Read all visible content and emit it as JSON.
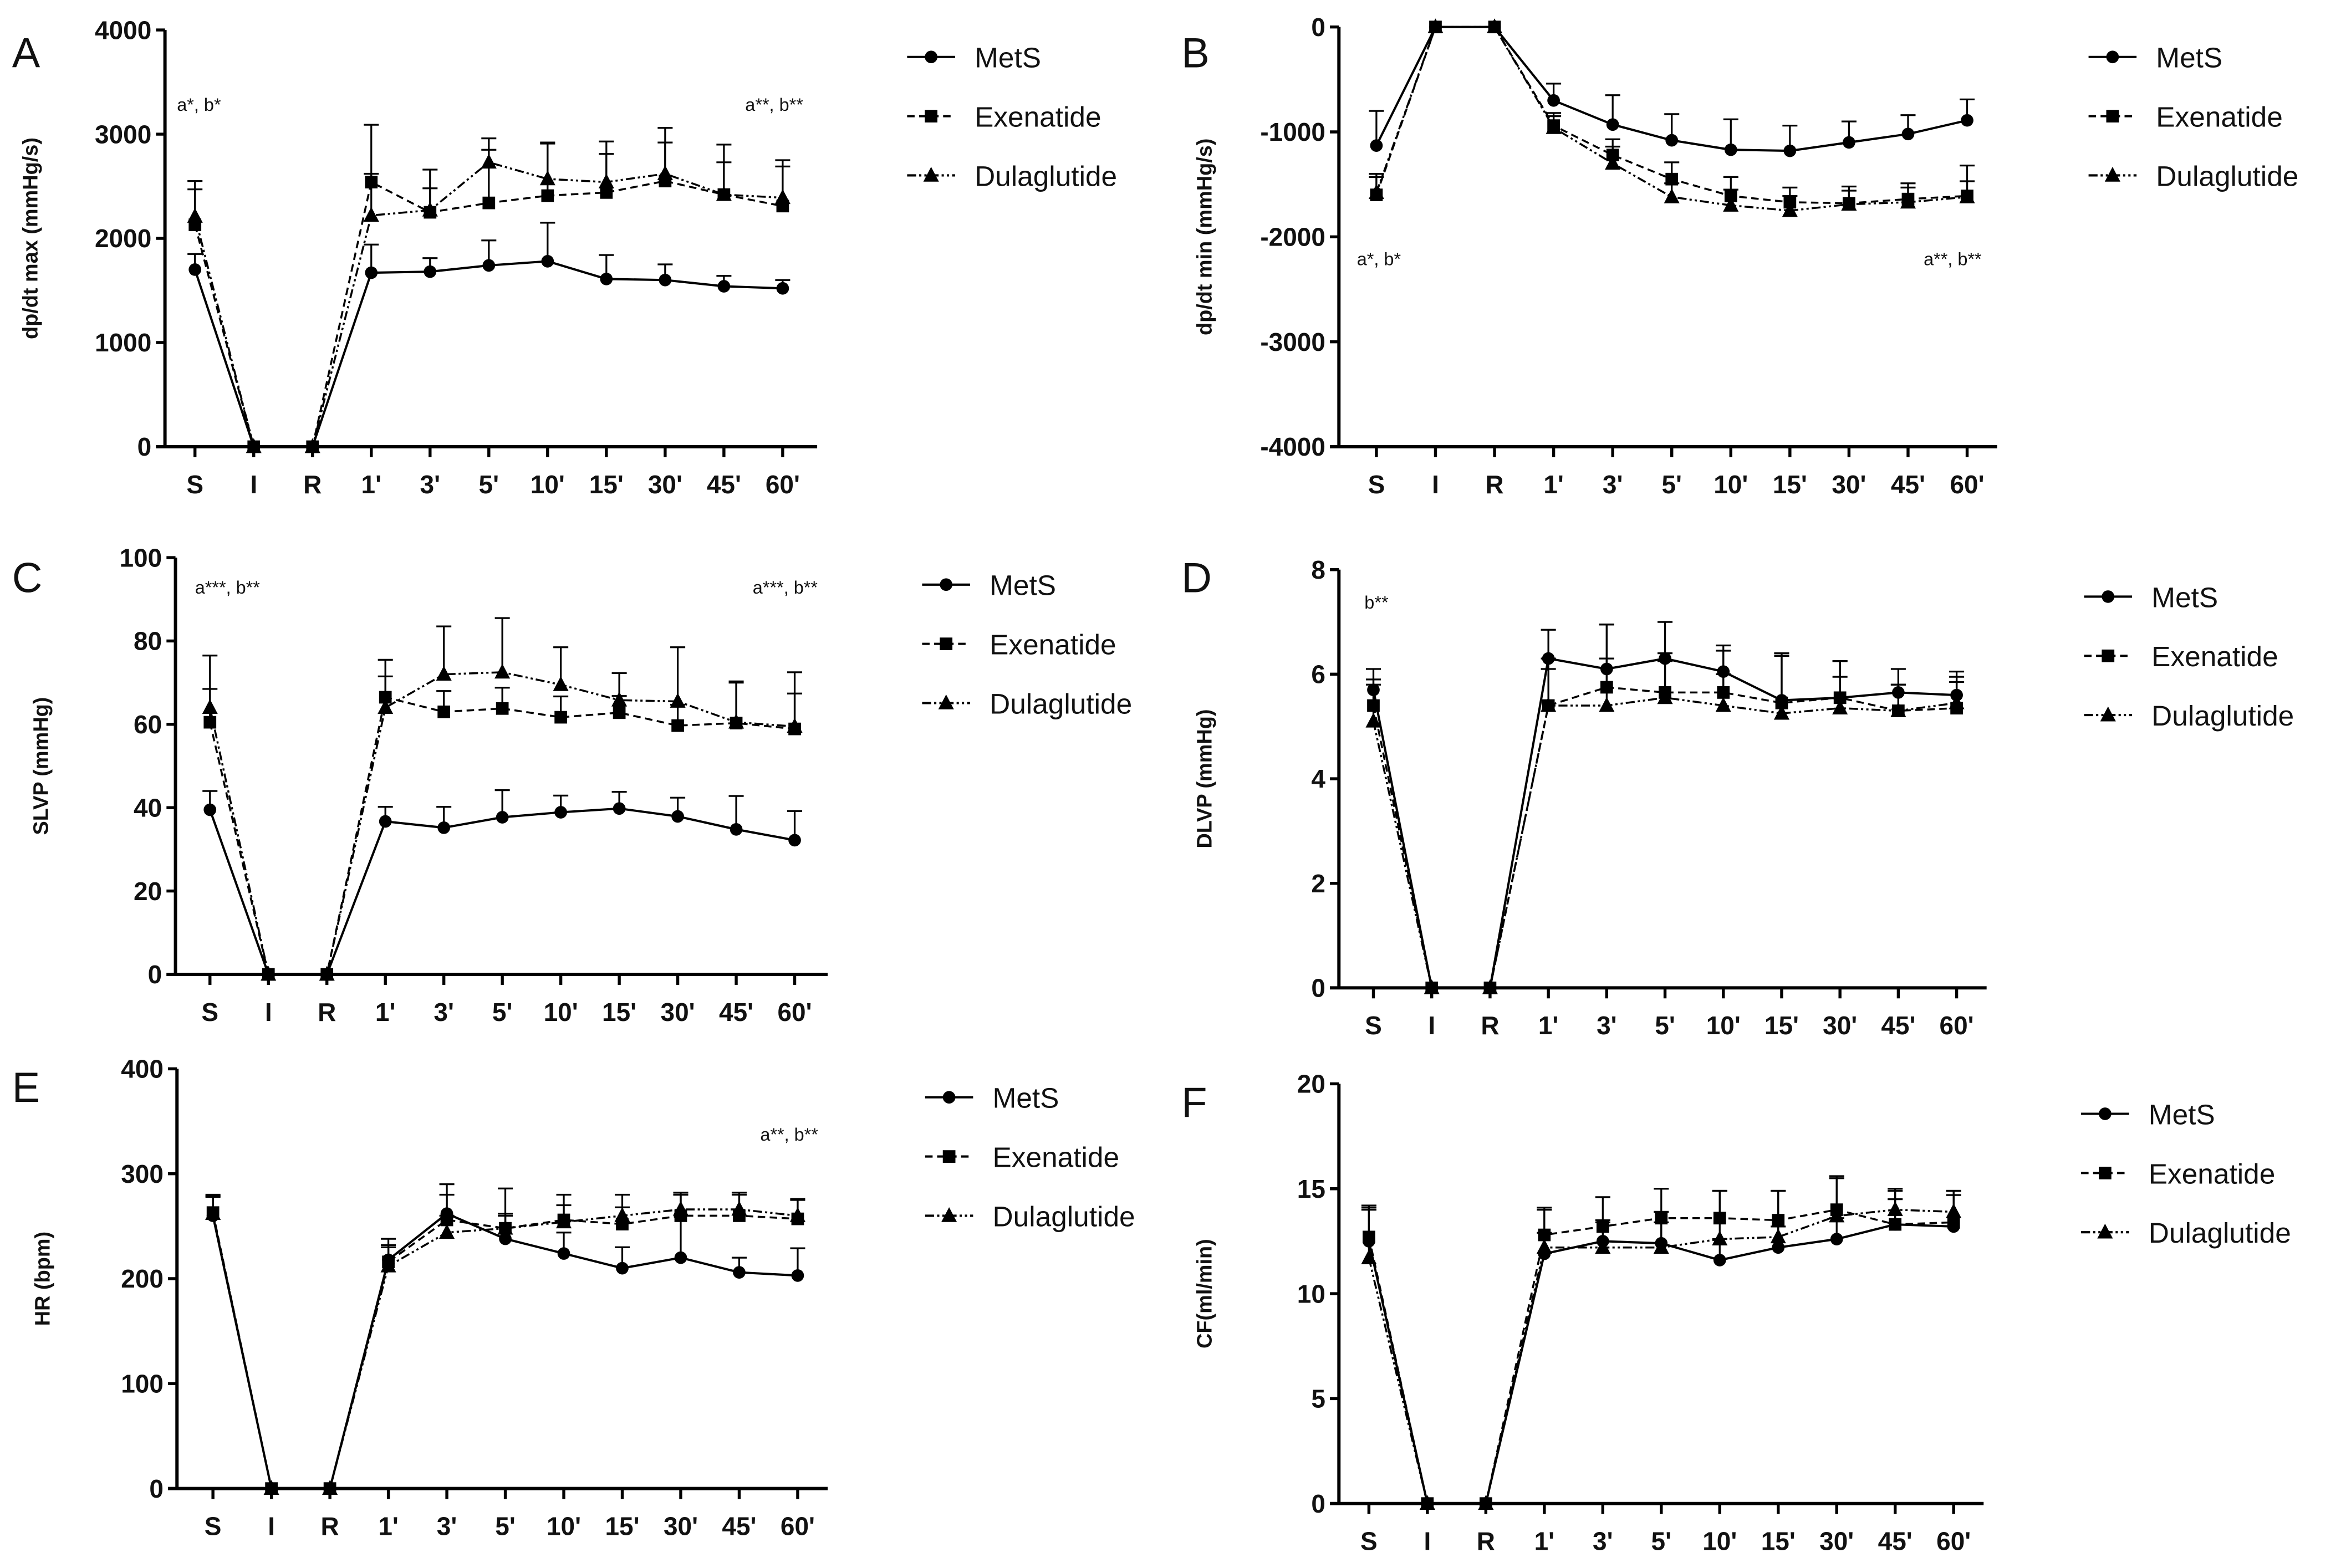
{
  "chart_data": [
    {
      "type": "line",
      "panel_label": "A",
      "ylabel": "dp/dt max (mmHg/s)",
      "ylim": [
        0,
        4000
      ],
      "yticks": [
        0,
        1000,
        2000,
        3000,
        4000
      ],
      "categories": [
        "S",
        "I",
        "R",
        "1'",
        "3'",
        "5'",
        "10'",
        "15'",
        "30'",
        "45'",
        "60'"
      ],
      "annotations": [
        "a*, b*",
        "a**, b**"
      ],
      "series": [
        {
          "name": "MetS",
          "values": [
            1700,
            0,
            0,
            1670,
            1680,
            1740,
            1780,
            1610,
            1600,
            1540,
            1520
          ],
          "error": [
            150,
            0,
            0,
            270,
            130,
            240,
            370,
            230,
            150,
            100,
            80
          ]
        },
        {
          "name": "Exenatide",
          "values": [
            2130,
            0,
            0,
            2540,
            2250,
            2340,
            2410,
            2440,
            2550,
            2420,
            2310
          ],
          "error": [
            340,
            0,
            0,
            80,
            230,
            510,
            500,
            370,
            370,
            310,
            380
          ]
        },
        {
          "name": "Dulaglutide",
          "values": [
            2210,
            0,
            0,
            2220,
            2270,
            2730,
            2570,
            2540,
            2620,
            2420,
            2390
          ],
          "error": [
            340,
            0,
            0,
            870,
            390,
            230,
            350,
            390,
            440,
            480,
            360
          ]
        }
      ]
    },
    {
      "type": "line",
      "panel_label": "B",
      "ylabel": "dp/dt min (mmHg/s)",
      "ylim": [
        -4000,
        0
      ],
      "yticks": [
        -4000,
        -3000,
        -2000,
        -1000,
        0
      ],
      "categories": [
        "S",
        "I",
        "R",
        "1'",
        "3'",
        "5'",
        "10'",
        "15'",
        "30'",
        "45'",
        "60'"
      ],
      "annotations": [
        "a*, b*",
        "a**, b**"
      ],
      "series": [
        {
          "name": "MetS",
          "values": [
            -1130,
            0,
            0,
            -700,
            -930,
            -1080,
            -1170,
            -1180,
            -1100,
            -1020,
            -890
          ],
          "error": [
            330,
            0,
            0,
            160,
            280,
            250,
            290,
            240,
            200,
            180,
            200
          ]
        },
        {
          "name": "Exenatide",
          "values": [
            -1600,
            0,
            0,
            -940,
            -1220,
            -1450,
            -1610,
            -1670,
            -1680,
            -1640,
            -1610
          ],
          "error": [
            200,
            0,
            0,
            120,
            150,
            160,
            180,
            140,
            160,
            150,
            140
          ]
        },
        {
          "name": "Dulaglutide",
          "values": [
            -1580,
            0,
            0,
            -960,
            -1300,
            -1620,
            -1700,
            -1750,
            -1690,
            -1670,
            -1620
          ],
          "error": [
            150,
            0,
            0,
            110,
            160,
            130,
            150,
            140,
            130,
            140,
            300
          ]
        }
      ]
    },
    {
      "type": "line",
      "panel_label": "C",
      "ylabel": "SLVP (mmHg)",
      "ylim": [
        0,
        100
      ],
      "yticks": [
        0,
        20,
        40,
        60,
        80,
        100
      ],
      "categories": [
        "S",
        "I",
        "R",
        "1'",
        "3'",
        "5'",
        "10'",
        "15'",
        "30'",
        "45'",
        "60'"
      ],
      "annotations": [
        "a***, b**",
        "a***, b**"
      ],
      "series": [
        {
          "name": "MetS",
          "values": [
            39.5,
            0,
            0,
            36.7,
            35.2,
            37.7,
            38.9,
            39.8,
            37.9,
            34.8,
            32.2
          ],
          "error": [
            4.5,
            0,
            0,
            3.5,
            5,
            6.5,
            4,
            4,
            4.5,
            8,
            7
          ]
        },
        {
          "name": "Exenatide",
          "values": [
            60.5,
            0,
            0,
            66.5,
            63,
            63.8,
            61.7,
            62.8,
            59.7,
            60.3,
            58.9
          ],
          "error": [
            8,
            0,
            0,
            5,
            5,
            5,
            5,
            4,
            5,
            10,
            8.5
          ]
        },
        {
          "name": "Dulaglutide",
          "values": [
            64,
            0,
            0,
            64,
            72,
            72.5,
            69.5,
            65.8,
            65.5,
            60.5,
            59.5
          ],
          "error": [
            12.5,
            0,
            0,
            11.5,
            11.5,
            13,
            9,
            6.5,
            13,
            9.5,
            13
          ]
        }
      ]
    },
    {
      "type": "line",
      "panel_label": "D",
      "ylabel": "DLVP (mmHg)",
      "ylim": [
        0,
        8
      ],
      "yticks": [
        0,
        2,
        4,
        6,
        8
      ],
      "categories": [
        "S",
        "I",
        "R",
        "1'",
        "3'",
        "5'",
        "10'",
        "15'",
        "30'",
        "45'",
        "60'"
      ],
      "annotations": [
        "b**"
      ],
      "series": [
        {
          "name": "MetS",
          "values": [
            5.7,
            0,
            0,
            6.3,
            6.1,
            6.3,
            6.05,
            5.5,
            5.55,
            5.65,
            5.6
          ],
          "error": [
            0.4,
            0,
            0,
            0.55,
            0.85,
            0.7,
            0.5,
            0.9,
            0.7,
            0.45,
            0.45
          ]
        },
        {
          "name": "Exenatide",
          "values": [
            5.4,
            0,
            0,
            5.4,
            5.75,
            5.65,
            5.65,
            5.45,
            5.55,
            5.3,
            5.35
          ],
          "error": [
            0.5,
            0,
            0,
            0.7,
            1.2,
            0.6,
            0.8,
            0.95,
            0.4,
            0.5,
            0.6
          ]
        },
        {
          "name": "Dulaglutide",
          "values": [
            5.1,
            0,
            0,
            5.4,
            5.4,
            5.55,
            5.4,
            5.25,
            5.35,
            5.3,
            5.45
          ],
          "error": [
            0.7,
            0,
            0,
            0.9,
            0.9,
            0.85,
            0.6,
            1.1,
            0.9,
            0.5,
            0.4
          ]
        }
      ]
    },
    {
      "type": "line",
      "panel_label": "E",
      "ylabel": "HR (bpm)",
      "ylim": [
        0,
        400
      ],
      "yticks": [
        0,
        100,
        200,
        300,
        400
      ],
      "categories": [
        "S",
        "I",
        "R",
        "1'",
        "3'",
        "5'",
        "10'",
        "15'",
        "30'",
        "45'",
        "60'"
      ],
      "annotations": [
        "a**, b**"
      ],
      "series": [
        {
          "name": "MetS",
          "values": [
            260,
            0,
            0,
            218,
            262,
            238,
            224,
            210,
            220,
            206,
            203
          ],
          "error": [
            18,
            0,
            0,
            20,
            28,
            24,
            20,
            20,
            60,
            14,
            26
          ]
        },
        {
          "name": "Exenatide",
          "values": [
            263,
            0,
            0,
            216,
            256,
            248,
            256,
            252,
            260,
            260,
            257
          ],
          "error": [
            16,
            0,
            0,
            14,
            24,
            12,
            14,
            16,
            20,
            20,
            18
          ]
        },
        {
          "name": "Dulaglutide",
          "values": [
            262,
            0,
            0,
            212,
            244,
            248,
            254,
            260,
            266,
            266,
            260
          ],
          "error": [
            18,
            0,
            0,
            20,
            16,
            38,
            26,
            20,
            16,
            16,
            16
          ]
        }
      ]
    },
    {
      "type": "line",
      "panel_label": "F",
      "ylabel": "CF(ml/min)",
      "ylim": [
        0,
        20
      ],
      "yticks": [
        0,
        5,
        10,
        15,
        20
      ],
      "categories": [
        "S",
        "I",
        "R",
        "1'",
        "3'",
        "5'",
        "10'",
        "15'",
        "30'",
        "45'",
        "60'"
      ],
      "annotations": [],
      "series": [
        {
          "name": "MetS",
          "values": [
            12.5,
            0,
            0,
            11.9,
            12.5,
            12.4,
            11.6,
            12.2,
            12.6,
            13.3,
            13.2
          ],
          "error": [
            1.5,
            0,
            0,
            1,
            1,
            1,
            1,
            1,
            1,
            1.2,
            1.5
          ]
        },
        {
          "name": "Exenatide",
          "values": [
            12.7,
            0,
            0,
            12.8,
            13.2,
            13.6,
            13.6,
            13.5,
            14.0,
            13.3,
            13.4
          ],
          "error": [
            1.5,
            0,
            0,
            1.2,
            1.4,
            1.4,
            1.3,
            1.4,
            1.5,
            1.6,
            1.5
          ]
        },
        {
          "name": "Dulaglutide",
          "values": [
            11.7,
            0,
            0,
            12.2,
            12.2,
            12.2,
            12.6,
            12.7,
            13.7,
            14.0,
            13.9
          ],
          "error": [
            2.4,
            0,
            0,
            1.9,
            1.2,
            1.7,
            2.3,
            2.2,
            1.9,
            1,
            1
          ]
        }
      ]
    }
  ]
}
